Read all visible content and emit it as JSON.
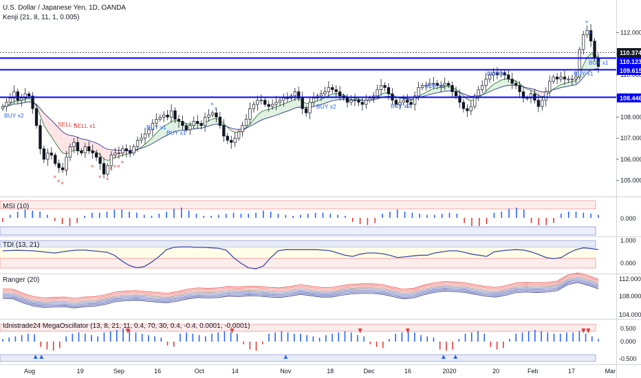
{
  "header": {
    "symbol": "U.S. Dollar / Japanese Yen, 1D, OANDA",
    "study": "Kenji (21, 8, 11, 1, 0.005)"
  },
  "colors": {
    "up": "#131722",
    "down": "#131722",
    "level": "#0000ff",
    "bull_cloud": "#2e7d32",
    "bear_cloud": "#c62828",
    "buy": "#2962ff",
    "sell": "#e53935"
  },
  "price_tags": {
    "last": "110.374",
    "l1": "110.123",
    "l2": "109.615",
    "l3": "108.446"
  },
  "signals": {
    "buy_x2": "BUY x2",
    "buy_x1": "BUY x1",
    "sell_x1": "SELL x1",
    "sell_x": "SELL x"
  },
  "panels": {
    "msi": "MSI (10)",
    "tdi": "TDI (13, 21)",
    "ranger": "Ranger (20)",
    "mega": "Idnistrade24 MegaOscillator (13, 8, 21, 11, 0.4, 70, 30, 0.4, -0.4, 0.0001, -0.0001)"
  },
  "chart_data": {
    "type": "candlestick",
    "title": "U.S. Dollar / Japanese Yen, 1D, OANDA",
    "x_ticks": [
      "Aug",
      "19",
      "Sep",
      "16",
      "Oct",
      "14",
      "Nov",
      "18",
      "Dec",
      "16",
      "2020",
      "20",
      "Feb",
      "17",
      "Mar"
    ],
    "y_ticks": [
      "112.000",
      "111.000",
      "110.000",
      "109.000",
      "108.000",
      "107.000",
      "106.000",
      "105.000"
    ],
    "ylim": [
      104.3,
      112.7
    ],
    "levels": [
      110.123,
      109.615,
      108.446
    ],
    "last_price": 110.374,
    "closes": [
      108.5,
      108.7,
      108.9,
      109.2,
      108.8,
      108.9,
      109.1,
      109.0,
      108.4,
      107.6,
      106.5,
      106.0,
      106.3,
      106.2,
      105.8,
      105.6,
      105.5,
      106.1,
      106.6,
      106.8,
      106.4,
      106.3,
      106.6,
      106.4,
      106.3,
      106.1,
      105.8,
      105.3,
      105.7,
      106.2,
      106.3,
      106.3,
      106.5,
      106.4,
      106.3,
      106.6,
      106.9,
      107.0,
      107.2,
      107.4,
      107.7,
      107.9,
      108.0,
      108.1,
      108.0,
      108.3,
      107.9,
      107.8,
      107.6,
      107.4,
      107.6,
      107.8,
      107.7,
      107.6,
      108.0,
      108.1,
      108.2,
      108.0,
      107.6,
      107.1,
      106.9,
      106.8,
      107.0,
      107.3,
      107.6,
      107.9,
      108.4,
      108.6,
      108.8,
      108.8,
      108.6,
      108.5,
      108.6,
      108.7,
      108.8,
      108.9,
      108.9,
      109.0,
      109.2,
      108.9,
      108.4,
      108.2,
      108.7,
      108.9,
      109.0,
      109.1,
      109.2,
      109.4,
      109.3,
      109.2,
      109.0,
      108.9,
      108.7,
      108.8,
      108.8,
      108.7,
      108.6,
      108.8,
      108.9,
      109.0,
      109.3,
      109.5,
      109.4,
      109.1,
      108.8,
      108.6,
      108.7,
      108.8,
      108.7,
      108.6,
      109.0,
      109.4,
      109.5,
      109.5,
      109.6,
      109.6,
      109.5,
      109.5,
      109.6,
      109.5,
      109.2,
      109.0,
      108.7,
      108.4,
      108.3,
      108.5,
      109.0,
      109.3,
      109.5,
      109.8,
      110.0,
      110.1,
      110.0,
      110.1,
      110.0,
      109.8,
      109.6,
      109.5,
      109.2,
      108.9,
      108.9,
      109.1,
      108.8,
      108.5,
      108.8,
      109.2,
      109.7,
      109.9,
      109.8,
      109.9,
      109.8,
      109.8,
      109.8,
      109.9,
      111.2,
      111.9,
      112.1,
      111.6,
      110.8,
      110.4
    ],
    "series": [
      {
        "name": "MSI (10)",
        "values": [
          -0.04,
          0.03,
          0.06,
          0.08,
          0.07,
          0.06,
          0.03,
          -0.03,
          -0.06,
          -0.08,
          -0.05,
          0.02,
          0.05,
          0.05,
          0.06,
          0.08,
          0.08,
          0.06,
          0.05,
          0.03,
          0.02,
          0.04,
          0.06,
          0.09,
          0.1,
          0.07,
          0.04,
          0.02,
          0.02,
          0.03,
          0.04,
          0.05,
          0.04,
          0.04,
          0.05,
          0.07,
          0.06,
          0.04,
          0.03,
          0.02,
          0.03,
          0.04,
          0.05,
          0.05,
          0.04,
          0.03,
          0.02,
          -0.04,
          -0.06,
          -0.07,
          -0.05,
          0.04,
          0.06,
          0.08,
          0.06,
          0.05,
          0.04,
          0.03,
          0.03,
          0.04,
          0.05,
          0.04,
          -0.05,
          -0.08,
          -0.08,
          -0.06,
          0.05,
          0.06,
          0.09,
          0.1,
          0.08,
          -0.05,
          -0.07,
          -0.07,
          -0.05,
          0.04,
          0.06,
          0.06,
          0.05,
          0.04,
          0.03
        ]
      },
      {
        "name": "TDI (13, 21)",
        "values": [
          0.55,
          0.56,
          0.57,
          0.56,
          0.55,
          0.52,
          0.48,
          0.45,
          0.5,
          0.55,
          0.58,
          0.58,
          0.55,
          0.52,
          0.48,
          0.35,
          0.1,
          -0.1,
          -0.2,
          -0.15,
          0.05,
          0.3,
          0.6,
          0.7,
          0.72,
          0.72,
          0.7,
          0.7,
          0.68,
          0.66,
          0.58,
          0.25,
          0.0,
          -0.2,
          -0.25,
          -0.12,
          0.25,
          0.55,
          0.6,
          0.6,
          0.6,
          0.6,
          0.6,
          0.58,
          0.55,
          0.45,
          0.35,
          0.3,
          0.4,
          0.45,
          0.45,
          0.42,
          0.35,
          0.25,
          0.28,
          0.32,
          0.35,
          0.35,
          0.45,
          0.5,
          0.55,
          0.55,
          0.48,
          0.4,
          0.35,
          0.3,
          0.5,
          0.55,
          0.58,
          0.6,
          0.58,
          0.5,
          0.38,
          0.25,
          0.2,
          0.25,
          0.45,
          0.6,
          0.68,
          0.65,
          0.6
        ]
      },
      {
        "name": "Ranger (20)",
        "values": [
          108.5,
          108.4,
          107.5,
          106.8,
          106.5,
          106.6,
          106.7,
          106.4,
          106.7,
          106.8,
          107.2,
          107.8,
          108.0,
          108.1,
          107.9,
          107.7,
          107.5,
          107.9,
          108.4,
          108.7,
          108.6,
          108.7,
          109.0,
          108.9,
          109.1,
          109.0,
          108.8,
          108.7,
          109.0,
          109.4,
          109.1,
          108.8,
          108.8,
          109.2,
          109.5,
          109.6,
          109.6,
          109.4,
          108.9,
          108.4,
          108.6,
          109.3,
          109.8,
          110.1,
          110.0,
          109.8,
          109.4,
          109.0,
          108.8,
          109.2,
          109.8,
          109.9,
          109.8,
          109.9,
          110.2,
          111.5,
          112.0,
          111.4,
          110.6
        ]
      },
      {
        "name": "Idnistrade24 MegaOscillator",
        "values": [
          0.1,
          0.15,
          0.2,
          0.25,
          0.3,
          0.28,
          -0.2,
          -0.3,
          -0.35,
          -0.25,
          0.2,
          0.3,
          0.35,
          0.3,
          0.25,
          0.2,
          0.35,
          0.4,
          0.45,
          0.5,
          0.45,
          0.35,
          0.3,
          0.25,
          0.2,
          0.15,
          -0.15,
          -0.2,
          0.3,
          0.35,
          0.3,
          0.25,
          0.2,
          0.3,
          0.35,
          0.4,
          0.35,
          0.3,
          -0.1,
          -0.3,
          -0.35,
          -0.1,
          0.3,
          0.35,
          0.4,
          0.35,
          0.3,
          0.3,
          0.25,
          0.2,
          0.15,
          0.25,
          0.3,
          0.35,
          0.4,
          0.35,
          0.25,
          0.2,
          -0.1,
          -0.2,
          -0.25,
          0.1,
          0.3,
          0.35,
          0.4,
          0.35,
          0.25,
          0.2,
          0.15,
          -0.3,
          -0.35,
          -0.3,
          0.1,
          0.3,
          0.35,
          0.4,
          0.3,
          -0.2,
          -0.3,
          -0.25,
          0.1,
          0.3,
          0.35,
          0.4,
          0.45,
          0.4,
          0.35,
          0.3,
          0.3,
          0.35,
          0.35,
          0.4,
          0.3,
          0.2,
          0.1
        ]
      }
    ]
  }
}
